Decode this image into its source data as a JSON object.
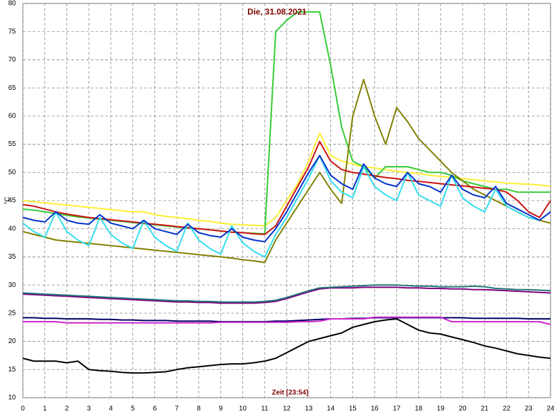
{
  "chart_data": {
    "type": "line",
    "title": "Die, 31.08.2021",
    "x_label": "Zeit [23:54]",
    "y_label": "°C",
    "x": [
      0,
      0.5,
      1,
      1.5,
      2,
      2.5,
      3,
      3.5,
      4,
      4.5,
      5,
      5.5,
      6,
      6.5,
      7,
      7.5,
      8,
      8.5,
      9,
      9.5,
      10,
      10.5,
      11,
      11.5,
      12,
      12.5,
      13,
      13.5,
      14,
      14.5,
      15,
      15.5,
      16,
      16.5,
      17,
      17.5,
      18,
      18.5,
      19,
      19.5,
      20,
      20.5,
      21,
      21.5,
      22,
      22.5,
      23,
      23.5,
      24
    ],
    "xlim": [
      0,
      24
    ],
    "xticks": [
      0,
      1,
      2,
      3,
      4,
      5,
      6,
      7,
      8,
      9,
      10,
      11,
      12,
      13,
      14,
      15,
      16,
      17,
      18,
      19,
      20,
      21,
      22,
      23,
      24
    ],
    "ylim": [
      10,
      80
    ],
    "yticks": [
      10,
      15,
      20,
      25,
      30,
      35,
      40,
      45,
      50,
      55,
      60,
      65,
      70,
      75,
      80
    ],
    "grid": true,
    "series": [
      {
        "color": "#ffee33",
        "values": [
          45,
          44.8,
          44.6,
          44.4,
          44.2,
          44,
          43.8,
          43.6,
          43.4,
          43.2,
          43,
          43,
          42.5,
          42.2,
          42,
          41.8,
          41.5,
          41.3,
          41,
          40.8,
          40.7,
          40.6,
          40.5,
          42,
          45,
          48,
          52,
          57,
          53,
          52,
          51.5,
          51,
          50.8,
          50.5,
          50.2,
          50,
          49.8,
          49.5,
          49.3,
          49.1,
          48.9,
          48.7,
          48.5,
          48.3,
          48.1,
          48,
          47.9,
          47.8,
          47.5
        ]
      },
      {
        "color": "#33cc33",
        "values": [
          43.5,
          43.3,
          43,
          42.7,
          42.4,
          42.1,
          41.9,
          41.7,
          41.5,
          41.3,
          41.1,
          40.9,
          40.7,
          40.5,
          40.3,
          40.1,
          40,
          39.8,
          39.6,
          39.4,
          39.3,
          39.2,
          39.1,
          75,
          77,
          78.5,
          78.5,
          78.5,
          69,
          58,
          52,
          51,
          49,
          51,
          51,
          51,
          50.5,
          50,
          50,
          49.5,
          48.5,
          48,
          47.5,
          47,
          47,
          46.5,
          46.5,
          46.5,
          46.5
        ]
      },
      {
        "color": "#808000",
        "values": [
          39.5,
          39,
          38.5,
          38,
          37.8,
          37.6,
          37.4,
          37.2,
          37,
          36.8,
          36.6,
          36.4,
          36.2,
          36,
          35.8,
          35.6,
          35.4,
          35.2,
          35,
          34.8,
          34.5,
          34.3,
          34,
          38,
          41,
          44,
          47,
          50,
          47,
          44.5,
          60,
          66.5,
          60,
          55,
          61.5,
          59,
          56,
          54,
          52,
          50,
          48.5,
          47,
          46,
          45,
          44,
          43,
          42,
          41.5,
          41
        ]
      },
      {
        "color": "#cc1111",
        "values": [
          44.3,
          44,
          43.5,
          43,
          42.6,
          42.3,
          42,
          41.8,
          41.6,
          41.4,
          41.2,
          41,
          40.8,
          40.6,
          40.4,
          40.2,
          40,
          39.8,
          39.6,
          39.4,
          39.3,
          39.1,
          39,
          40.5,
          44,
          47.5,
          51,
          55.5,
          52,
          50.5,
          50,
          49.7,
          49.4,
          49.1,
          48.9,
          48.6,
          48.4,
          48.2,
          48,
          47.8,
          47.6,
          47.4,
          47.2,
          47,
          46.5,
          45,
          43,
          42,
          45
        ]
      },
      {
        "color": "#33dded",
        "values": [
          41,
          39.5,
          38.5,
          43,
          39.5,
          38,
          37,
          42,
          39,
          37.5,
          36.5,
          41.5,
          38.5,
          37,
          36,
          41,
          38,
          36.5,
          35.5,
          40.5,
          37.5,
          36,
          35,
          39,
          42,
          45.5,
          49,
          53,
          48.5,
          46.5,
          45.5,
          51,
          47.5,
          46,
          45,
          50,
          46,
          45,
          44,
          49.5,
          45.5,
          44,
          43,
          47,
          44,
          43,
          42,
          41.5,
          43
        ]
      },
      {
        "color": "#0033cc",
        "values": [
          42,
          41.5,
          41.2,
          43,
          41.5,
          41,
          40.8,
          42.5,
          41,
          40.5,
          40,
          41.5,
          40,
          39.5,
          39,
          40.8,
          39.3,
          38.8,
          38.5,
          40,
          38.5,
          38,
          37.7,
          40,
          43,
          46.5,
          50,
          53,
          49.5,
          48,
          47,
          51.5,
          49,
          48,
          47.5,
          50,
          48,
          47.5,
          46.5,
          49.5,
          47,
          46,
          45.5,
          47.5,
          44.5,
          43.5,
          42.5,
          41.5,
          43
        ]
      },
      {
        "color": "#800080",
        "values": [
          28.4,
          28.3,
          28.2,
          28.1,
          28,
          27.9,
          27.8,
          27.7,
          27.6,
          27.5,
          27.4,
          27.3,
          27.2,
          27.1,
          27,
          27,
          26.9,
          26.9,
          26.8,
          26.8,
          26.8,
          26.8,
          26.9,
          27.1,
          27.6,
          28.2,
          28.8,
          29.3,
          29.5,
          29.5,
          29.5,
          29.6,
          29.6,
          29.6,
          29.6,
          29.5,
          29.5,
          29.4,
          29.4,
          29.3,
          29.3,
          29.2,
          29.2,
          29.1,
          29,
          28.9,
          28.8,
          28.7,
          28.6
        ]
      },
      {
        "color": "#227777",
        "values": [
          28.6,
          28.5,
          28.4,
          28.3,
          28.2,
          28.1,
          28,
          27.9,
          27.8,
          27.7,
          27.6,
          27.5,
          27.4,
          27.3,
          27.2,
          27.2,
          27.1,
          27.1,
          27,
          27,
          27,
          27,
          27.1,
          27.3,
          27.8,
          28.4,
          29,
          29.5,
          29.6,
          29.7,
          29.8,
          29.9,
          30,
          30,
          30,
          29.9,
          29.8,
          29.8,
          29.7,
          29.7,
          29.7,
          29.8,
          29.7,
          29.4,
          29.3,
          29.2,
          29.2,
          29.1,
          29
        ]
      },
      {
        "color": "#000066",
        "values": [
          24.2,
          24.2,
          24.1,
          24.1,
          24,
          24,
          24,
          23.9,
          23.9,
          23.8,
          23.8,
          23.7,
          23.7,
          23.7,
          23.6,
          23.6,
          23.6,
          23.6,
          23.5,
          23.5,
          23.5,
          23.5,
          23.5,
          23.6,
          23.6,
          23.7,
          23.8,
          23.9,
          24,
          24,
          24.1,
          24.1,
          24.2,
          24.2,
          24.2,
          24.2,
          24.2,
          24.2,
          24.2,
          24.2,
          24.2,
          24.1,
          24.1,
          24.1,
          24.1,
          24.1,
          24,
          24,
          24
        ]
      },
      {
        "color": "#cc22cc",
        "values": [
          23.5,
          23.5,
          23.5,
          23.5,
          23.3,
          23.3,
          23.3,
          23.3,
          23.3,
          23.3,
          23.3,
          23.3,
          23.3,
          23.3,
          23.3,
          23.3,
          23.3,
          23.3,
          23.4,
          23.4,
          23.4,
          23.4,
          23.4,
          23.4,
          23.4,
          23.5,
          23.5,
          23.6,
          24,
          24,
          24,
          24,
          24.3,
          24.3,
          24.3,
          24.3,
          24.3,
          24.3,
          24.3,
          23.5,
          23.5,
          23.5,
          23.5,
          23.5,
          23.5,
          23.5,
          23.5,
          23.5,
          23
        ]
      },
      {
        "color": "#000000",
        "values": [
          17,
          16.5,
          16.5,
          16.5,
          16.2,
          16.5,
          15,
          14.8,
          14.7,
          14.5,
          14.4,
          14.4,
          14.5,
          14.6,
          15,
          15.3,
          15.5,
          15.7,
          15.9,
          16,
          16,
          16.2,
          16.5,
          17,
          18,
          19,
          20,
          20.5,
          21,
          21.5,
          22.5,
          23,
          23.5,
          23.8,
          24,
          23,
          22,
          21.5,
          21.3,
          20.8,
          20.3,
          19.8,
          19.2,
          18.8,
          18.3,
          17.8,
          17.5,
          17.2,
          17
        ]
      }
    ]
  }
}
